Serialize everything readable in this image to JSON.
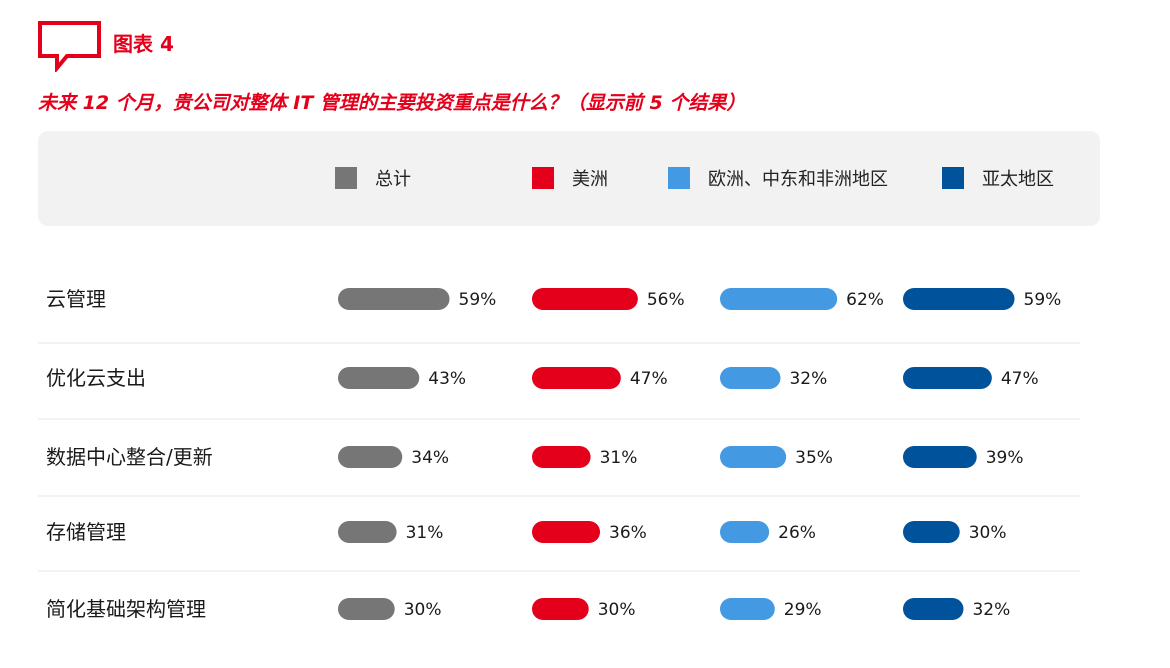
{
  "header": {
    "figure_label": "图表 4",
    "question": "未来 12 个月，贵公司对整体 IT 管理的主要投资重点是什么？（显示前 5 个结果）"
  },
  "icons": {
    "figure": "speech-bubble-icon"
  },
  "colors": {
    "accent": "#e4001b",
    "legend_background": "#f2f2f2",
    "divider": "#e6e6e6"
  },
  "chart_data": {
    "type": "bar",
    "orientation": "horizontal",
    "value_unit": "%",
    "categories": [
      "云管理",
      "优化云支出",
      "数据中心整合/更新",
      "存储管理",
      "简化基础架构管理"
    ],
    "series": [
      {
        "name": "总计",
        "color": "#767676",
        "values": [
          59,
          43,
          34,
          31,
          30
        ]
      },
      {
        "name": "美洲",
        "color": "#e4001b",
        "values": [
          56,
          47,
          31,
          36,
          30
        ]
      },
      {
        "name": "欧洲、中东和非洲地区",
        "color": "#4499e3",
        "values": [
          62,
          32,
          35,
          26,
          29
        ]
      },
      {
        "name": "亚太地区",
        "color": "#00529b",
        "values": [
          59,
          47,
          39,
          30,
          32
        ]
      }
    ],
    "legend_position": "top",
    "grid": false
  }
}
